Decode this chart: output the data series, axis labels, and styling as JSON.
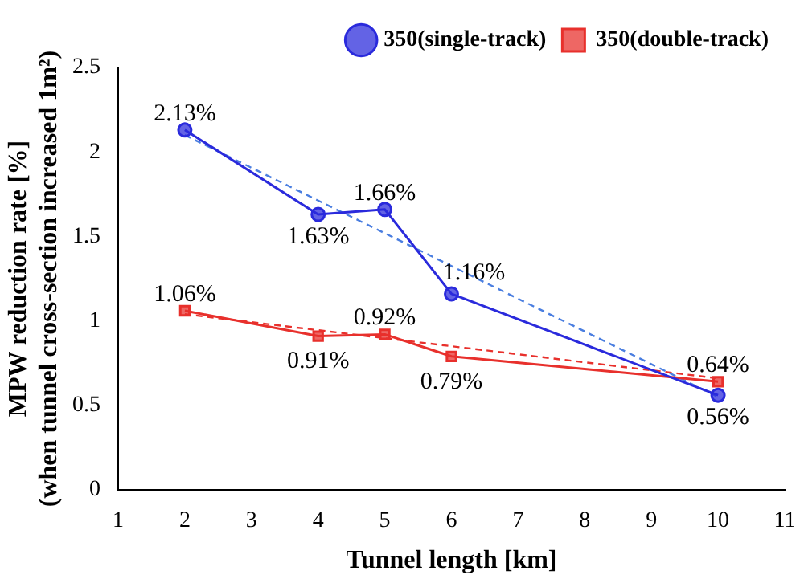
{
  "chart_data": {
    "type": "line",
    "xlabel": "Tunnel length [km]",
    "ylabel": "MPW reduction rate [%]",
    "y2label": "(when tunnel cross-section increased 1m²)",
    "x": [
      2,
      4,
      5,
      6,
      10
    ],
    "series": [
      {
        "name": "350(single-track)",
        "color": "#2a2adc",
        "values": [
          2.13,
          1.63,
          1.66,
          1.16,
          0.56
        ],
        "marker": "circle",
        "value_labels": [
          "2.13%",
          "1.63%",
          "1.66%",
          "1.16%",
          "0.56%"
        ]
      },
      {
        "name": "350(double-track)",
        "color": "#e8302c",
        "values": [
          1.06,
          0.91,
          0.92,
          0.79,
          0.64
        ],
        "marker": "square",
        "value_labels": [
          "1.06%",
          "0.91%",
          "0.92%",
          "0.79%",
          "0.64%"
        ]
      },
      {
        "type": "line",
        "color": "#4a7ee0",
        "values": [
          2.1,
          null,
          null,
          null,
          0.55
        ],
        "marker": "none",
        "line_style": "dashed"
      },
      {
        "type": "line",
        "color": "#e8302c",
        "values": [
          1.04,
          null,
          null,
          null,
          0.66
        ],
        "marker": "none",
        "line_style": "dashed"
      }
    ],
    "xlim": [
      1,
      11
    ],
    "xticks": [
      1,
      2,
      3,
      4,
      5,
      6,
      7,
      8,
      9,
      10,
      11
    ],
    "ylim": [
      0,
      2.5
    ],
    "yticks": [
      0,
      0.5,
      1.0,
      1.5,
      2.0,
      2.5
    ],
    "grid": false,
    "legend": "top right"
  }
}
